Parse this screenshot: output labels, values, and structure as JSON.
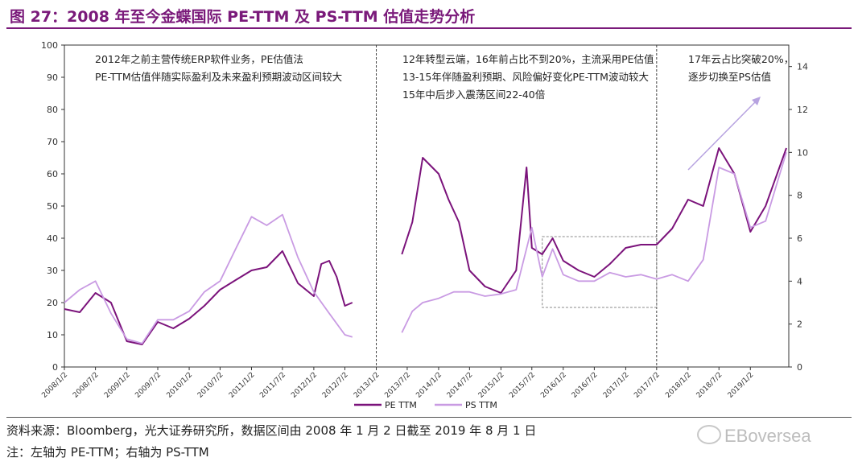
{
  "title": "图 27：2008 年至今金蝶国际 PE-TTM 及 PS-TTM 估值走势分析",
  "source": "资料来源：Bloomberg，光大证券研究所，数据区间由 2008 年 1 月 2 日截至 2019 年 8 月 1 日",
  "note": "注：左轴为 PE-TTM；右轴为 PS-TTM",
  "watermark": "EBoversea",
  "chart_data": {
    "type": "line",
    "x_tick_labels": [
      "2008/1/2",
      "2008/7/2",
      "2009/1/2",
      "2009/7/2",
      "2010/1/2",
      "2010/7/2",
      "2011/1/2",
      "2011/7/2",
      "2012/1/2",
      "2012/7/2",
      "2013/1/2",
      "2013/7/2",
      "2014/1/2",
      "2014/7/2",
      "2015/1/2",
      "2015/7/2",
      "2016/1/2",
      "2016/7/2",
      "2017/1/2",
      "2017/7/2",
      "2018/1/2",
      "2018/7/2",
      "2019/1/2"
    ],
    "left_axis": {
      "label": "",
      "ylim": [
        0,
        100
      ],
      "ticks": [
        "0",
        "10",
        "20",
        "30",
        "40",
        "50",
        "60",
        "70",
        "80",
        "90",
        "100"
      ]
    },
    "right_axis": {
      "label": "",
      "ylim": [
        0,
        15
      ],
      "ticks": [
        "0",
        "2",
        "4",
        "6",
        "8",
        "10",
        "12",
        "14"
      ]
    },
    "colors": {
      "pe": "#7b137b",
      "ps": "#c99be3"
    },
    "legend": {
      "position": "bottom-center",
      "pe_label": "PE TTM",
      "ps_label": "PS TTM"
    },
    "series": [
      {
        "name": "PE TTM",
        "axis": "left",
        "x": [
          "2008/1/2",
          "2008/4/1",
          "2008/7/2",
          "2008/10/1",
          "2009/1/2",
          "2009/4/1",
          "2009/7/2",
          "2009/10/1",
          "2010/1/2",
          "2010/4/1",
          "2010/7/2",
          "2010/10/1",
          "2011/1/2",
          "2011/4/1",
          "2011/7/2",
          "2011/10/1",
          "2012/1/2",
          "2012/2/15",
          "2012/4/1",
          "2012/5/15",
          "2012/7/2",
          "2012/8/15"
        ],
        "values": [
          18,
          17,
          23,
          20,
          8,
          7,
          14,
          12,
          15,
          19,
          24,
          27,
          30,
          31,
          36,
          26,
          22,
          32,
          33,
          28,
          19,
          20
        ]
      },
      {
        "name": "PS TTM",
        "axis": "right",
        "x": [
          "2008/1/2",
          "2008/4/1",
          "2008/7/2",
          "2008/10/1",
          "2009/1/2",
          "2009/4/1",
          "2009/7/2",
          "2009/10/1",
          "2010/1/2",
          "2010/4/1",
          "2010/7/2",
          "2010/10/1",
          "2011/1/2",
          "2011/4/1",
          "2011/7/2",
          "2011/10/1",
          "2012/1/2",
          "2012/4/1",
          "2012/7/2",
          "2012/8/15"
        ],
        "values": [
          3.0,
          3.6,
          4.0,
          2.5,
          1.3,
          1.1,
          2.2,
          2.2,
          2.6,
          3.5,
          4.0,
          5.5,
          7.0,
          6.6,
          7.1,
          5.1,
          3.5,
          2.5,
          1.5,
          1.4
        ]
      },
      {
        "name": "PE TTM",
        "axis": "left",
        "x": [
          "2013/6/1",
          "2013/8/1",
          "2013/10/1",
          "2014/1/2",
          "2014/3/1",
          "2014/5/1",
          "2014/7/2",
          "2014/10/1",
          "2015/1/2",
          "2015/4/1",
          "2015/6/1",
          "2015/7/2",
          "2015/9/1",
          "2015/11/1",
          "2016/1/2",
          "2016/4/1",
          "2016/7/2",
          "2016/10/1",
          "2017/1/2",
          "2017/4/1",
          "2017/7/2",
          "2017/10/1",
          "2018/1/2",
          "2018/4/1",
          "2018/7/2",
          "2018/10/1",
          "2019/1/2",
          "2019/4/1",
          "2019/8/1"
        ],
        "values": [
          35,
          45,
          65,
          60,
          52,
          45,
          30,
          25,
          23,
          30,
          62,
          37,
          35,
          40,
          33,
          30,
          28,
          32,
          37,
          38,
          38,
          43,
          52,
          50,
          68,
          60,
          42,
          50,
          68
        ]
      },
      {
        "name": "PS TTM",
        "axis": "right",
        "x": [
          "2013/6/1",
          "2013/8/1",
          "2013/10/1",
          "2014/1/2",
          "2014/4/1",
          "2014/7/2",
          "2014/10/1",
          "2015/1/2",
          "2015/4/1",
          "2015/7/2",
          "2015/9/1",
          "2015/11/1",
          "2016/1/2",
          "2016/4/1",
          "2016/7/2",
          "2016/10/1",
          "2017/1/2",
          "2017/4/1",
          "2017/7/2",
          "2017/10/1",
          "2018/1/2",
          "2018/4/1",
          "2018/7/2",
          "2018/10/1",
          "2019/1/2",
          "2019/4/1",
          "2019/8/1"
        ],
        "values": [
          1.6,
          2.6,
          3.0,
          3.2,
          3.5,
          3.5,
          3.3,
          3.4,
          3.6,
          6.5,
          4.2,
          5.5,
          4.3,
          4.0,
          4.0,
          4.4,
          4.2,
          4.3,
          4.1,
          4.3,
          4.0,
          5.0,
          9.3,
          9.0,
          6.5,
          6.8,
          10.0
        ]
      }
    ],
    "annotations": [
      {
        "lines": [
          "2012年之前主营传统ERP软件业务，PE估值法",
          "PE-TTM估值伴随实际盈利及未来盈利预期波动区间较大"
        ]
      },
      {
        "lines": [
          "12年转型云端，16年前占比不到20%，主流采用PE估值",
          "13-15年伴随盈利预期、风险偏好变化PE-TTM波动较大",
          "15年中后步入震荡区间22-40倍"
        ]
      },
      {
        "lines": [
          "17年云占比突破20%，",
          "逐步切换至PS估值"
        ]
      }
    ],
    "grid": false
  }
}
